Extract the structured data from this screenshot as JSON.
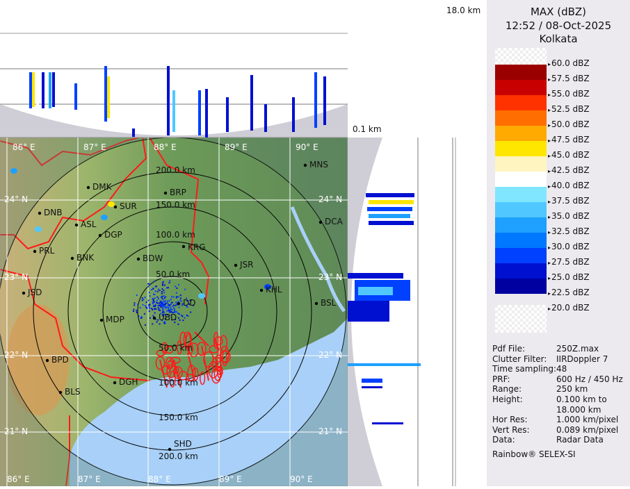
{
  "header": {
    "product": "MAX (dBZ)",
    "datetime": "12:52 / 08-Oct-2025",
    "station": "Kolkata"
  },
  "height_axis": {
    "top_label": "18.0 km",
    "bottom_label": "0.1 km"
  },
  "legend": {
    "levels": [
      {
        "label": "60.0 dBZ",
        "color": null
      },
      {
        "label": "57.5 dBZ",
        "color": "#9b0000"
      },
      {
        "label": "55.0 dBZ",
        "color": "#c80000"
      },
      {
        "label": "52.5 dBZ",
        "color": "#ff3200"
      },
      {
        "label": "50.0 dBZ",
        "color": "#ff6e00"
      },
      {
        "label": "47.5 dBZ",
        "color": "#ffaa00"
      },
      {
        "label": "45.0 dBZ",
        "color": "#ffe600"
      },
      {
        "label": "42.5 dBZ",
        "color": "#fff5c0"
      },
      {
        "label": "40.0 dBZ",
        "color": "#ffffff"
      },
      {
        "label": "37.5 dBZ",
        "color": "#80e6ff"
      },
      {
        "label": "35.0 dBZ",
        "color": "#50c8ff"
      },
      {
        "label": "32.5 dBZ",
        "color": "#1ea0ff"
      },
      {
        "label": "30.0 dBZ",
        "color": "#0078ff"
      },
      {
        "label": "27.5 dBZ",
        "color": "#0040ff"
      },
      {
        "label": "25.0 dBZ",
        "color": "#0010d0"
      },
      {
        "label": "22.5 dBZ",
        "color": "#0000a0"
      },
      {
        "label": "20.0 dBZ",
        "color": null
      }
    ]
  },
  "info": [
    {
      "key": "Pdf File:",
      "value": "250Z.max"
    },
    {
      "key": "Clutter Filter:",
      "value": "IIRDoppler 7"
    },
    {
      "key": "Time sampling:",
      "value": "48"
    },
    {
      "key": "PRF:",
      "value": "600 Hz / 450 Hz"
    },
    {
      "key": "Range:",
      "value": "250 km"
    },
    {
      "key": "Height:",
      "value": "0.100 km to"
    },
    {
      "key": "",
      "value": "18.000 km"
    },
    {
      "key": "Hor Res:",
      "value": "1.000 km/pixel"
    },
    {
      "key": "Vert Res:",
      "value": "0.089 km/pixel"
    },
    {
      "key": "Data:",
      "value": "Radar Data"
    }
  ],
  "credit": "Rainbow® SELEX-SI",
  "map": {
    "colors": {
      "land": "#6f9a5a",
      "sea": "#a8d0f8",
      "borders": "#ff1a1a",
      "rings": "#000000"
    },
    "longitudes": [
      "86° E",
      "87° E",
      "88° E",
      "89° E",
      "90° E"
    ],
    "latitudes": [
      "24° N",
      "23° N",
      "22° N",
      "21° N"
    ],
    "range_rings": [
      "50.0 km",
      "100.0 km",
      "150.0 km",
      "200.0 km"
    ],
    "cities": [
      "DMK",
      "BRP",
      "SUR",
      "DNB",
      "ASL",
      "DGP",
      "KRG",
      "PRL",
      "BNK",
      "BDW",
      "JSR",
      "KHL",
      "JSD",
      "DD",
      "UBD",
      "MDP",
      "BSL",
      "MNS",
      "DCA",
      "BPD",
      "DGH",
      "BLS",
      "SHD"
    ]
  }
}
